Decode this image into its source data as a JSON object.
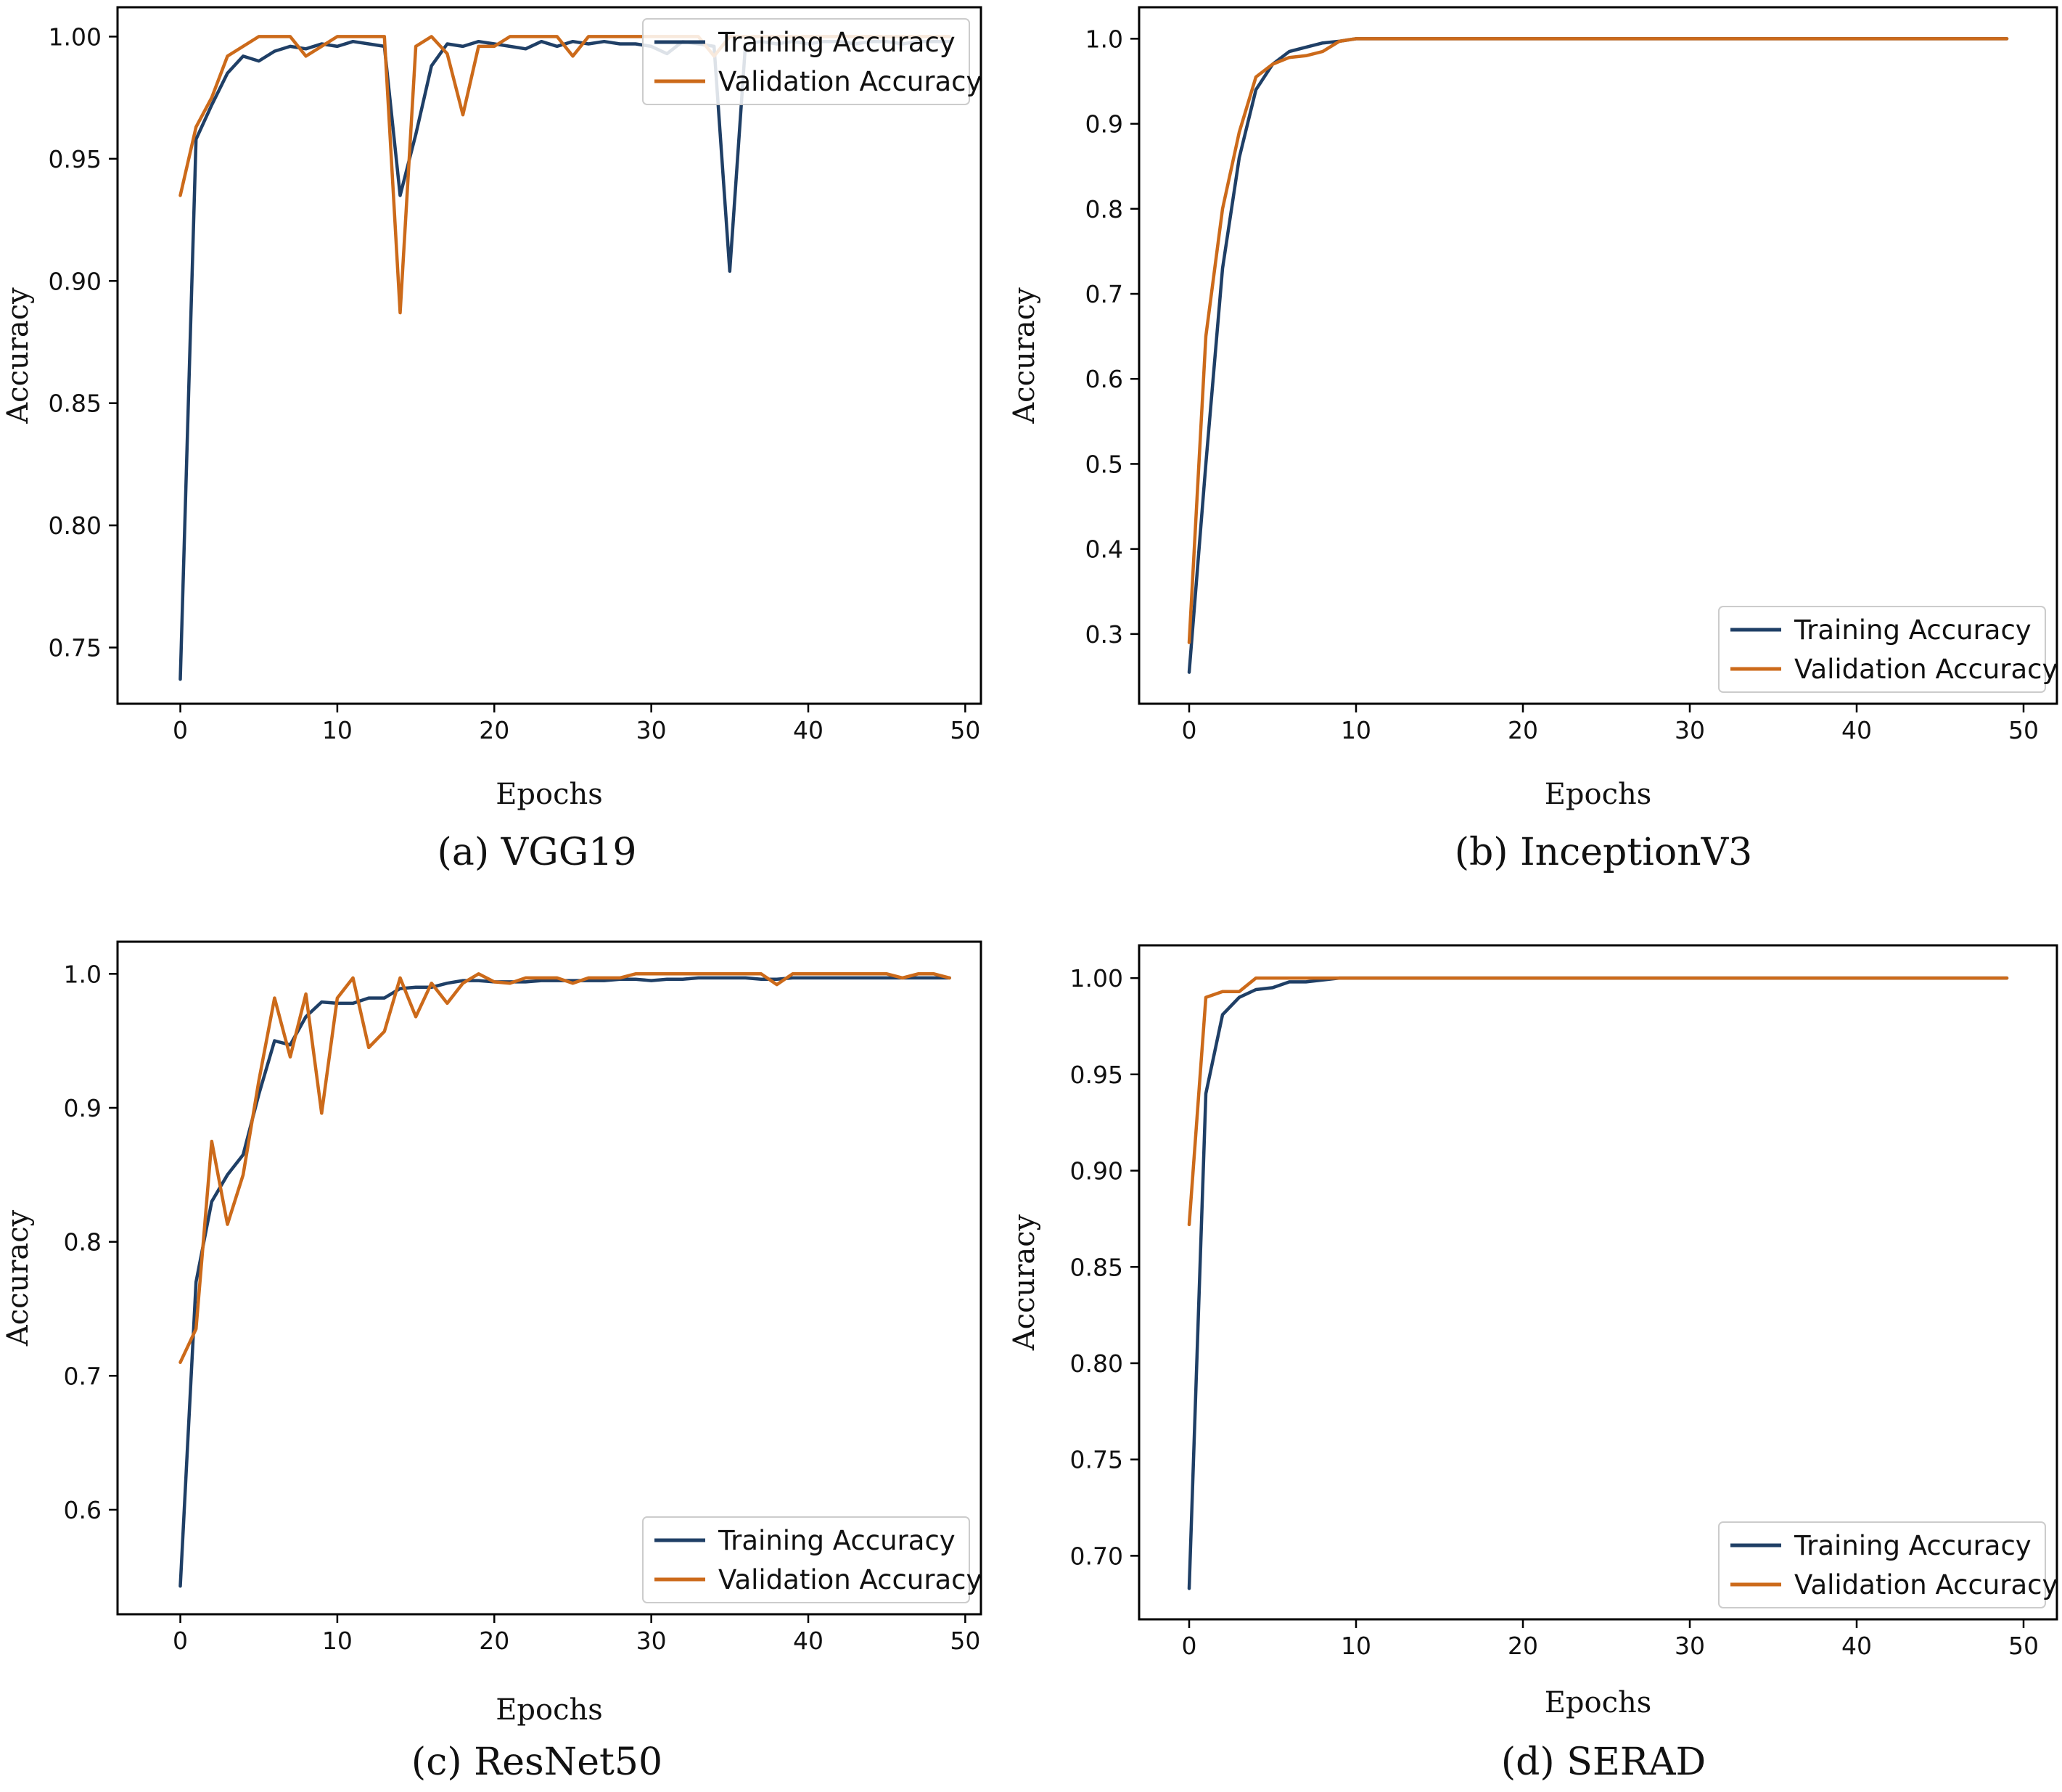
{
  "colors": {
    "training": "#1f3f66",
    "validation": "#cc6a1a"
  },
  "chart_data": [
    {
      "type": "line",
      "caption": "(a) VGG19",
      "xlabel": "Epochs",
      "ylabel": "Accuracy",
      "xlim": [
        -4,
        51
      ],
      "ylim": [
        0.727,
        1.012
      ],
      "xticks": [
        0,
        10,
        20,
        30,
        40,
        50
      ],
      "yticks": [
        0.75,
        0.8,
        0.85,
        0.9,
        0.95,
        1.0
      ],
      "ytick_labels": [
        "0.75",
        "0.80",
        "0.85",
        "0.90",
        "0.95",
        "1.00"
      ],
      "legend_position": "top-right",
      "series": [
        {
          "name": "Training Accuracy",
          "x": [
            0,
            1,
            2,
            3,
            4,
            5,
            6,
            7,
            8,
            9,
            10,
            11,
            12,
            13,
            14,
            15,
            16,
            17,
            18,
            19,
            20,
            21,
            22,
            23,
            24,
            25,
            26,
            27,
            28,
            29,
            30,
            31,
            32,
            33,
            34,
            35,
            36,
            37,
            38,
            39,
            40,
            41,
            42,
            43,
            44,
            45,
            46,
            47,
            48,
            49
          ],
          "values": [
            0.737,
            0.958,
            0.972,
            0.985,
            0.992,
            0.99,
            0.994,
            0.996,
            0.995,
            0.997,
            0.996,
            0.998,
            0.997,
            0.996,
            0.935,
            0.96,
            0.988,
            0.997,
            0.996,
            0.998,
            0.997,
            0.996,
            0.995,
            0.998,
            0.996,
            0.998,
            0.997,
            0.998,
            0.997,
            0.997,
            0.996,
            0.993,
            0.998,
            0.997,
            0.996,
            0.904,
            0.997,
            0.998,
            0.997,
            0.998,
            0.997,
            0.998,
            0.998,
            0.997,
            0.998,
            0.998,
            0.997,
            0.998,
            0.998,
            0.998
          ]
        },
        {
          "name": "Validation Accuracy",
          "x": [
            0,
            1,
            2,
            3,
            4,
            5,
            6,
            7,
            8,
            9,
            10,
            11,
            12,
            13,
            14,
            15,
            16,
            17,
            18,
            19,
            20,
            21,
            22,
            23,
            24,
            25,
            26,
            27,
            28,
            29,
            30,
            31,
            32,
            33,
            34,
            35,
            36,
            37,
            38,
            39,
            40,
            41,
            42,
            43,
            44,
            45,
            46,
            47,
            48,
            49
          ],
          "values": [
            0.935,
            0.963,
            0.975,
            0.992,
            0.996,
            1.0,
            1.0,
            1.0,
            0.992,
            0.996,
            1.0,
            1.0,
            1.0,
            1.0,
            0.887,
            0.996,
            1.0,
            0.993,
            0.968,
            0.996,
            0.996,
            1.0,
            1.0,
            1.0,
            1.0,
            0.992,
            1.0,
            1.0,
            1.0,
            1.0,
            1.0,
            1.0,
            1.0,
            1.0,
            0.992,
            1.0,
            1.0,
            1.0,
            1.0,
            1.0,
            1.0,
            1.0,
            1.0,
            1.0,
            1.0,
            1.0,
            1.0,
            1.0,
            1.0,
            1.0
          ]
        }
      ]
    },
    {
      "type": "line",
      "caption": "(b) InceptionV3",
      "xlabel": "Epochs",
      "ylabel": "Accuracy",
      "xlim": [
        -3,
        52
      ],
      "ylim": [
        0.218,
        1.037
      ],
      "xticks": [
        0,
        10,
        20,
        30,
        40,
        50
      ],
      "yticks": [
        0.3,
        0.4,
        0.5,
        0.6,
        0.7,
        0.8,
        0.9,
        1.0
      ],
      "ytick_labels": [
        "0.3",
        "0.4",
        "0.5",
        "0.6",
        "0.7",
        "0.8",
        "0.9",
        "1.0"
      ],
      "legend_position": "bottom-right",
      "series": [
        {
          "name": "Training Accuracy",
          "x": [
            0,
            1,
            2,
            3,
            4,
            5,
            6,
            7,
            8,
            9,
            10,
            11,
            12,
            13,
            14,
            15,
            20,
            25,
            30,
            35,
            40,
            45,
            49
          ],
          "values": [
            0.255,
            0.5,
            0.73,
            0.86,
            0.94,
            0.97,
            0.985,
            0.99,
            0.995,
            0.997,
            1.0,
            1.0,
            1.0,
            1.0,
            1.0,
            1.0,
            1.0,
            1.0,
            1.0,
            1.0,
            1.0,
            1.0,
            1.0
          ]
        },
        {
          "name": "Validation Accuracy",
          "x": [
            0,
            1,
            2,
            3,
            4,
            5,
            6,
            7,
            8,
            9,
            10,
            11,
            12,
            13,
            14,
            15,
            20,
            25,
            30,
            35,
            40,
            45,
            49
          ],
          "values": [
            0.29,
            0.65,
            0.8,
            0.89,
            0.955,
            0.97,
            0.978,
            0.98,
            0.985,
            0.997,
            1.0,
            1.0,
            1.0,
            1.0,
            1.0,
            1.0,
            1.0,
            1.0,
            1.0,
            1.0,
            1.0,
            1.0,
            1.0
          ]
        }
      ]
    },
    {
      "type": "line",
      "caption": "(c) ResNet50",
      "xlabel": "Epochs",
      "ylabel": "Accuracy",
      "xlim": [
        -4,
        51
      ],
      "ylim": [
        0.522,
        1.024
      ],
      "xticks": [
        0,
        10,
        20,
        30,
        40,
        50
      ],
      "yticks": [
        0.6,
        0.7,
        0.8,
        0.9,
        1.0
      ],
      "ytick_labels": [
        "0.6",
        "0.7",
        "0.8",
        "0.9",
        "1.0"
      ],
      "legend_position": "bottom-right",
      "series": [
        {
          "name": "Training Accuracy",
          "x": [
            0,
            1,
            2,
            3,
            4,
            5,
            6,
            7,
            8,
            9,
            10,
            11,
            12,
            13,
            14,
            15,
            16,
            17,
            18,
            19,
            20,
            21,
            22,
            23,
            24,
            25,
            26,
            27,
            28,
            29,
            30,
            31,
            32,
            33,
            34,
            35,
            36,
            37,
            38,
            39,
            40,
            41,
            42,
            43,
            44,
            45,
            46,
            47,
            48,
            49
          ],
          "values": [
            0.543,
            0.77,
            0.83,
            0.85,
            0.865,
            0.91,
            0.95,
            0.947,
            0.968,
            0.979,
            0.978,
            0.978,
            0.982,
            0.982,
            0.989,
            0.99,
            0.99,
            0.993,
            0.995,
            0.995,
            0.994,
            0.994,
            0.994,
            0.995,
            0.995,
            0.995,
            0.995,
            0.995,
            0.996,
            0.996,
            0.995,
            0.996,
            0.996,
            0.997,
            0.997,
            0.997,
            0.997,
            0.996,
            0.996,
            0.997,
            0.997,
            0.997,
            0.997,
            0.997,
            0.997,
            0.997,
            0.997,
            0.997,
            0.997,
            0.997
          ]
        },
        {
          "name": "Validation Accuracy",
          "x": [
            0,
            1,
            2,
            3,
            4,
            5,
            6,
            7,
            8,
            9,
            10,
            11,
            12,
            13,
            14,
            15,
            16,
            17,
            18,
            19,
            20,
            21,
            22,
            23,
            24,
            25,
            26,
            27,
            28,
            29,
            30,
            31,
            32,
            33,
            34,
            35,
            36,
            37,
            38,
            39,
            40,
            41,
            42,
            43,
            44,
            45,
            46,
            47,
            48,
            49
          ],
          "values": [
            0.71,
            0.735,
            0.875,
            0.813,
            0.85,
            0.92,
            0.982,
            0.938,
            0.985,
            0.896,
            0.982,
            0.997,
            0.945,
            0.957,
            0.997,
            0.968,
            0.993,
            0.978,
            0.993,
            1.0,
            0.994,
            0.993,
            0.997,
            0.997,
            0.997,
            0.993,
            0.997,
            0.997,
            0.997,
            1.0,
            1.0,
            1.0,
            1.0,
            1.0,
            1.0,
            1.0,
            1.0,
            1.0,
            0.992,
            1.0,
            1.0,
            1.0,
            1.0,
            1.0,
            1.0,
            1.0,
            0.997,
            1.0,
            1.0,
            0.997
          ]
        }
      ]
    },
    {
      "type": "line",
      "caption": "(d) SERAD",
      "xlabel": "Epochs",
      "ylabel": "Accuracy",
      "xlim": [
        -3,
        52
      ],
      "ylim": [
        0.667,
        1.017
      ],
      "xticks": [
        0,
        10,
        20,
        30,
        40,
        50
      ],
      "yticks": [
        0.7,
        0.75,
        0.8,
        0.85,
        0.9,
        0.95,
        1.0
      ],
      "ytick_labels": [
        "0.70",
        "0.75",
        "0.80",
        "0.85",
        "0.90",
        "0.95",
        "1.00"
      ],
      "legend_position": "bottom-right",
      "series": [
        {
          "name": "Training Accuracy",
          "x": [
            0,
            1,
            2,
            3,
            4,
            5,
            6,
            7,
            8,
            9,
            10,
            11,
            12,
            13,
            14,
            15,
            16,
            20,
            25,
            30,
            35,
            40,
            45,
            49
          ],
          "values": [
            0.683,
            0.94,
            0.981,
            0.99,
            0.994,
            0.995,
            0.998,
            0.998,
            0.999,
            1.0,
            1.0,
            1.0,
            1.0,
            1.0,
            1.0,
            1.0,
            1.0,
            1.0,
            1.0,
            1.0,
            1.0,
            1.0,
            1.0,
            1.0
          ]
        },
        {
          "name": "Validation Accuracy",
          "x": [
            0,
            1,
            2,
            3,
            4,
            5,
            6,
            7,
            8,
            9,
            10,
            11,
            12,
            13,
            14,
            15,
            16,
            20,
            25,
            30,
            35,
            40,
            45,
            49
          ],
          "values": [
            0.872,
            0.99,
            0.993,
            0.993,
            1.0,
            1.0,
            1.0,
            1.0,
            1.0,
            1.0,
            1.0,
            1.0,
            1.0,
            1.0,
            1.0,
            1.0,
            1.0,
            1.0,
            1.0,
            1.0,
            1.0,
            1.0,
            1.0,
            1.0
          ]
        }
      ]
    }
  ]
}
